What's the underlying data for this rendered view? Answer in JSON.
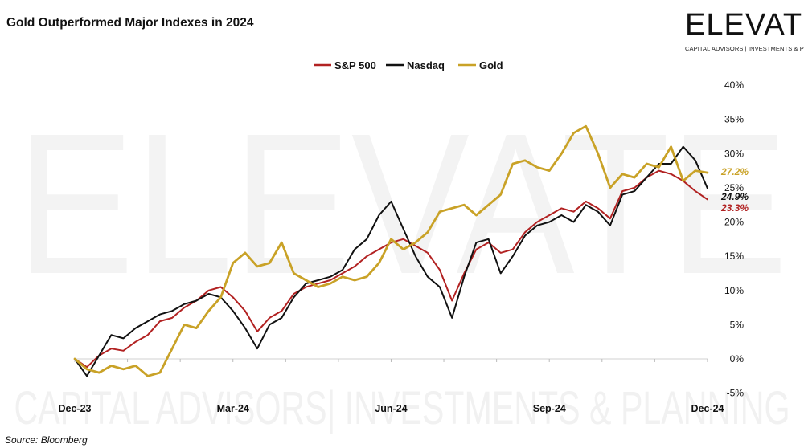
{
  "title": "Gold Outperformed Major Indexes in 2024",
  "source": "Source: Bloomberg",
  "logo": {
    "word": "ELEVATE",
    "tagline": "CAPITAL ADVISORS | INVESTMENTS & PLANNING"
  },
  "watermark": {
    "word": "ELEVATE",
    "tagline": "CAPITAL ADVISORS| INVESTMENTS & PLANNING"
  },
  "chart_data": {
    "type": "line",
    "title": "Gold Outperformed Major Indexes in 2024",
    "xlabel": "",
    "ylabel": "",
    "x_ticks": [
      "Dec-23",
      "Mar-24",
      "Jun-24",
      "Sep-24",
      "Dec-24"
    ],
    "x_tick_week": [
      0,
      13,
      26,
      39,
      52
    ],
    "y_ticks": [
      "-5%",
      "0%",
      "5%",
      "10%",
      "15%",
      "20%",
      "25%",
      "30%",
      "35%",
      "40%"
    ],
    "ylim": [
      -5,
      40
    ],
    "legend_position": "top-center",
    "series": [
      {
        "name": "S&P 500",
        "color": "#b22222",
        "end_label": "23.3%",
        "week": [
          0,
          1,
          2,
          3,
          4,
          5,
          6,
          7,
          8,
          9,
          10,
          11,
          12,
          13,
          14,
          15,
          16,
          17,
          18,
          19,
          20,
          21,
          22,
          23,
          24,
          25,
          26,
          27,
          28,
          29,
          30,
          31,
          32,
          33,
          34,
          35,
          36,
          37,
          38,
          39,
          40,
          41,
          42,
          43,
          44,
          45,
          46,
          47,
          48,
          49,
          50,
          51,
          52
        ],
        "values": [
          0,
          -1.2,
          0.5,
          1.5,
          1.2,
          2.5,
          3.5,
          5.5,
          6.0,
          7.5,
          8.5,
          10,
          10.5,
          9.0,
          7.0,
          4.0,
          6.0,
          7.0,
          9.5,
          10.5,
          11.0,
          11.5,
          12.5,
          13.5,
          15.0,
          16.0,
          17.0,
          17.5,
          16.5,
          15.5,
          13.0,
          8.5,
          12.5,
          16.0,
          17.0,
          15.5,
          16.0,
          18.5,
          20.0,
          21.0,
          22.0,
          21.5,
          23.0,
          22.0,
          20.5,
          24.5,
          25.0,
          26.5,
          27.5,
          27.0,
          26.0,
          24.5,
          23.3
        ]
      },
      {
        "name": "Nasdaq",
        "color": "#111111",
        "end_label": "24.9%",
        "week": [
          0,
          1,
          2,
          3,
          4,
          5,
          6,
          7,
          8,
          9,
          10,
          11,
          12,
          13,
          14,
          15,
          16,
          17,
          18,
          19,
          20,
          21,
          22,
          23,
          24,
          25,
          26,
          27,
          28,
          29,
          30,
          31,
          32,
          33,
          34,
          35,
          36,
          37,
          38,
          39,
          40,
          41,
          42,
          43,
          44,
          45,
          46,
          47,
          48,
          49,
          50,
          51,
          52
        ],
        "values": [
          0,
          -2.5,
          0.5,
          3.5,
          3.0,
          4.5,
          5.5,
          6.5,
          7.0,
          8.0,
          8.5,
          9.5,
          9.0,
          7.0,
          4.5,
          1.5,
          5.0,
          6.0,
          9.0,
          11.0,
          11.5,
          12.0,
          13.0,
          16.0,
          17.5,
          21.0,
          23.0,
          19.0,
          15.0,
          12.0,
          10.5,
          6.0,
          12.0,
          17.0,
          17.5,
          12.5,
          15.0,
          18.0,
          19.5,
          20.0,
          21.0,
          20.0,
          22.5,
          21.5,
          19.5,
          24.0,
          24.5,
          26.5,
          28.5,
          28.5,
          31.0,
          29.0,
          24.9
        ]
      },
      {
        "name": "Gold",
        "color": "#c9a227",
        "end_label": "27.2%",
        "week": [
          0,
          1,
          2,
          3,
          4,
          5,
          6,
          7,
          8,
          9,
          10,
          11,
          12,
          13,
          14,
          15,
          16,
          17,
          18,
          19,
          20,
          21,
          22,
          23,
          24,
          25,
          26,
          27,
          28,
          29,
          30,
          31,
          32,
          33,
          34,
          35,
          36,
          37,
          38,
          39,
          40,
          41,
          42,
          43,
          44,
          45,
          46,
          47,
          48,
          49,
          50,
          51,
          52
        ],
        "values": [
          0,
          -1.5,
          -2.0,
          -1.0,
          -1.5,
          -1.0,
          -2.5,
          -2.0,
          1.5,
          5.0,
          4.5,
          7.0,
          9.0,
          14.0,
          15.5,
          13.5,
          14.0,
          17.0,
          12.5,
          11.5,
          10.5,
          11.0,
          12.0,
          11.5,
          12.0,
          14.0,
          17.5,
          16.0,
          17.0,
          18.5,
          21.5,
          22.0,
          22.5,
          21.0,
          22.5,
          24.0,
          28.5,
          29.0,
          28.0,
          27.5,
          30.0,
          33.0,
          34.0,
          30.0,
          25.0,
          27.0,
          26.5,
          28.5,
          28.0,
          31.0,
          26.0,
          27.5,
          27.2
        ]
      }
    ]
  }
}
